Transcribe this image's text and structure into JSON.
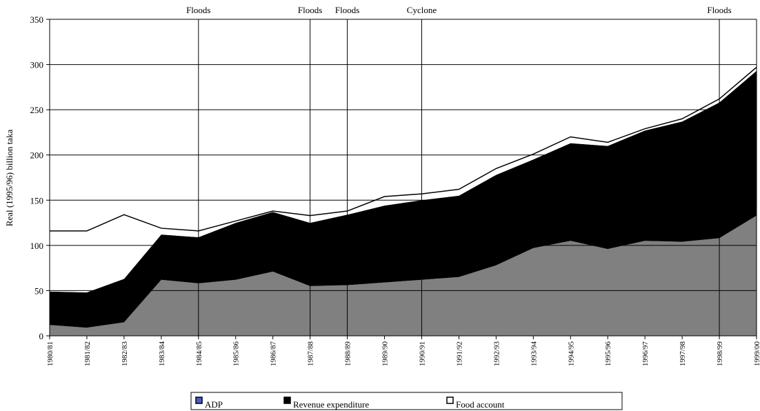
{
  "chart_data": {
    "type": "stacked_area",
    "ylabel": "Real (1995/96) billion taka",
    "categories": [
      "1980/81",
      "1981/82",
      "1982/83",
      "1983/84",
      "1984/85",
      "1985/86",
      "1986/87",
      "1987/88",
      "1988/89",
      "1989/90",
      "1990/91",
      "1991/92",
      "1992/93",
      "1993/94",
      "1994/95",
      "1995/96",
      "1996/97",
      "1997/98",
      "1998/99",
      "1999/00"
    ],
    "series": [
      {
        "name": "ADP",
        "color": "#808080",
        "swatch": "#4a5bd0",
        "values": [
          12,
          9,
          15,
          62,
          58,
          62,
          71,
          55,
          56,
          59,
          62,
          65,
          78,
          97,
          105,
          96,
          105,
          104,
          108,
          133
        ]
      },
      {
        "name": "Revenue expenditure",
        "color": "#000000",
        "values": [
          37,
          39,
          48,
          50,
          51,
          63,
          66,
          70,
          78,
          85,
          88,
          90,
          100,
          98,
          108,
          114,
          122,
          133,
          150,
          160
        ]
      },
      {
        "name": "Food account",
        "color": "#ffffff",
        "values": [
          67,
          68,
          71,
          7,
          7,
          2,
          1,
          8,
          4,
          10,
          7,
          7,
          7,
          6,
          7,
          4,
          2,
          3,
          4,
          4
        ]
      }
    ],
    "annotations": [
      {
        "text": "Floods",
        "category": "1984/85"
      },
      {
        "text": "Floods",
        "category": "1987/88"
      },
      {
        "text": "Floods",
        "category": "1988/89"
      },
      {
        "text": "Cyclone",
        "category": "1990/91"
      },
      {
        "text": "Floods",
        "category": "1998/99"
      }
    ],
    "ylim": [
      0,
      350
    ],
    "yticks": [
      0,
      50,
      100,
      150,
      200,
      250,
      300,
      350
    ],
    "grid": true,
    "legend": "bottom"
  }
}
